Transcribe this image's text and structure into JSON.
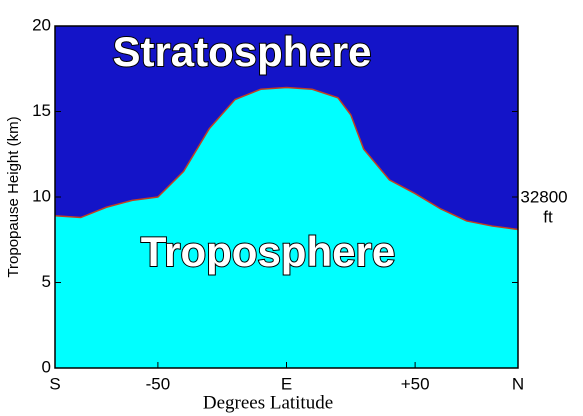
{
  "chart_data": {
    "type": "area",
    "ylabel": "Tropopause Height (km)",
    "xlabel": "Degrees Latitude",
    "upper_label": "Stratosphere",
    "lower_label": "Troposphere",
    "annotations": [
      "32800",
      "ft"
    ],
    "x": [
      -90,
      -80,
      -70,
      -60,
      -50,
      -40,
      -30,
      -20,
      -10,
      0,
      10,
      20,
      25,
      30,
      40,
      50,
      60,
      70,
      80,
      90
    ],
    "values": [
      8.9,
      8.8,
      9.4,
      9.8,
      10.0,
      11.5,
      14.0,
      15.7,
      16.3,
      16.4,
      16.3,
      15.8,
      14.8,
      12.8,
      11.0,
      10.2,
      9.3,
      8.6,
      8.3,
      8.1
    ],
    "color": "#00ffff",
    "background_color": "#1414c8",
    "edge_color": "#c04020",
    "xlim": [
      -90,
      90
    ],
    "ylim": [
      0,
      20
    ],
    "xticks": [
      {
        "value": -90,
        "label": "S"
      },
      -50,
      {
        "value": 0,
        "label": "E"
      },
      {
        "value": 50,
        "label": "+50"
      },
      {
        "value": 90,
        "label": "N"
      }
    ],
    "yticks": [
      0,
      5,
      10,
      15,
      20
    ]
  }
}
